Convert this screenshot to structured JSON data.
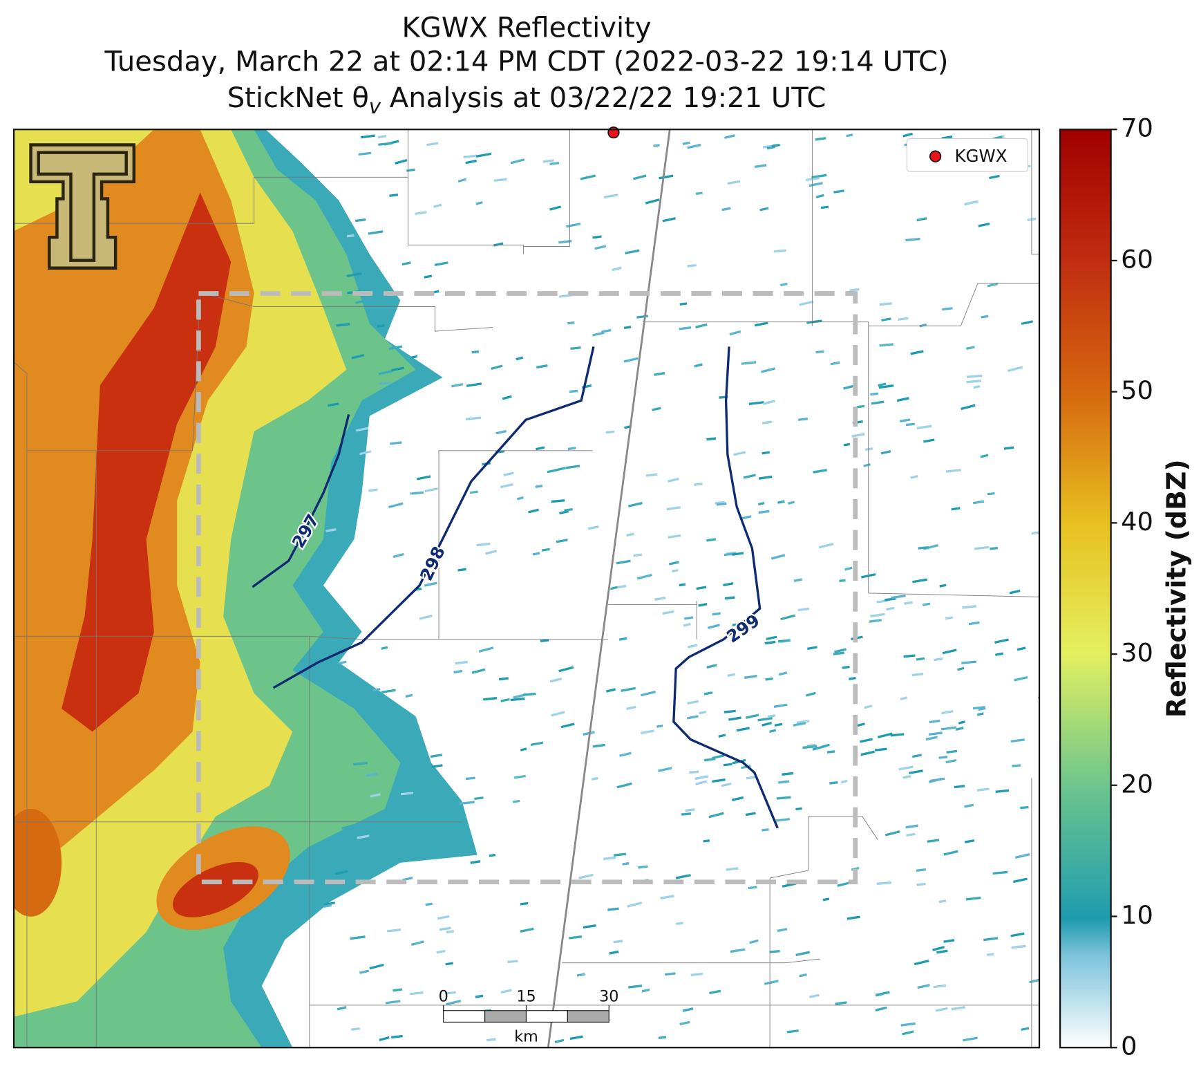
{
  "header": {
    "title": "KGWX Reflectivity",
    "subtitle": "Tuesday, March 22 at 02:14 PM CDT (2022-03-22 19:14 UTC)",
    "analysis": {
      "text": "StickNet θ",
      "subscript": "v",
      "suffix": " Analysis at 03/22/22 19:21 UTC"
    }
  },
  "legend": {
    "label": "KGWX",
    "color": "#e8131c"
  },
  "contour_color": "#0d2a73",
  "contours": [
    {
      "level": 297
    },
    {
      "level": 298
    },
    {
      "level": 299
    }
  ],
  "colorbar": {
    "label": "Reflectivity (dBZ)",
    "lim": [
      0,
      70
    ],
    "ticks": [
      0,
      10,
      20,
      30,
      40,
      50,
      60,
      70
    ]
  },
  "scale_bar": {
    "ticks": [
      0,
      15,
      30
    ],
    "unit": "km"
  }
}
